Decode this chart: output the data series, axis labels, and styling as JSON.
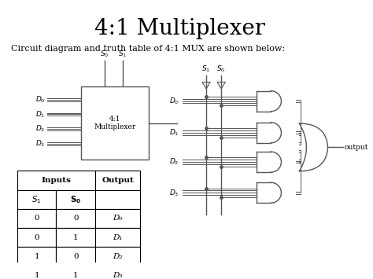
{
  "title": "4:1 Multiplexer",
  "subtitle": "Circuit diagram and truth table of 4:1 MUX are shown below:",
  "table_rows": [
    [
      "0",
      "0",
      "D₀"
    ],
    [
      "0",
      "1",
      "D₁"
    ],
    [
      "1",
      "0",
      "D₂"
    ],
    [
      "1",
      "1",
      "D₃"
    ]
  ],
  "input_labels": [
    "D₀",
    "D₁",
    "D₂",
    "D₃"
  ],
  "gate_input_labels": [
    "D₀",
    "D₁",
    "D₂",
    "D₃"
  ]
}
